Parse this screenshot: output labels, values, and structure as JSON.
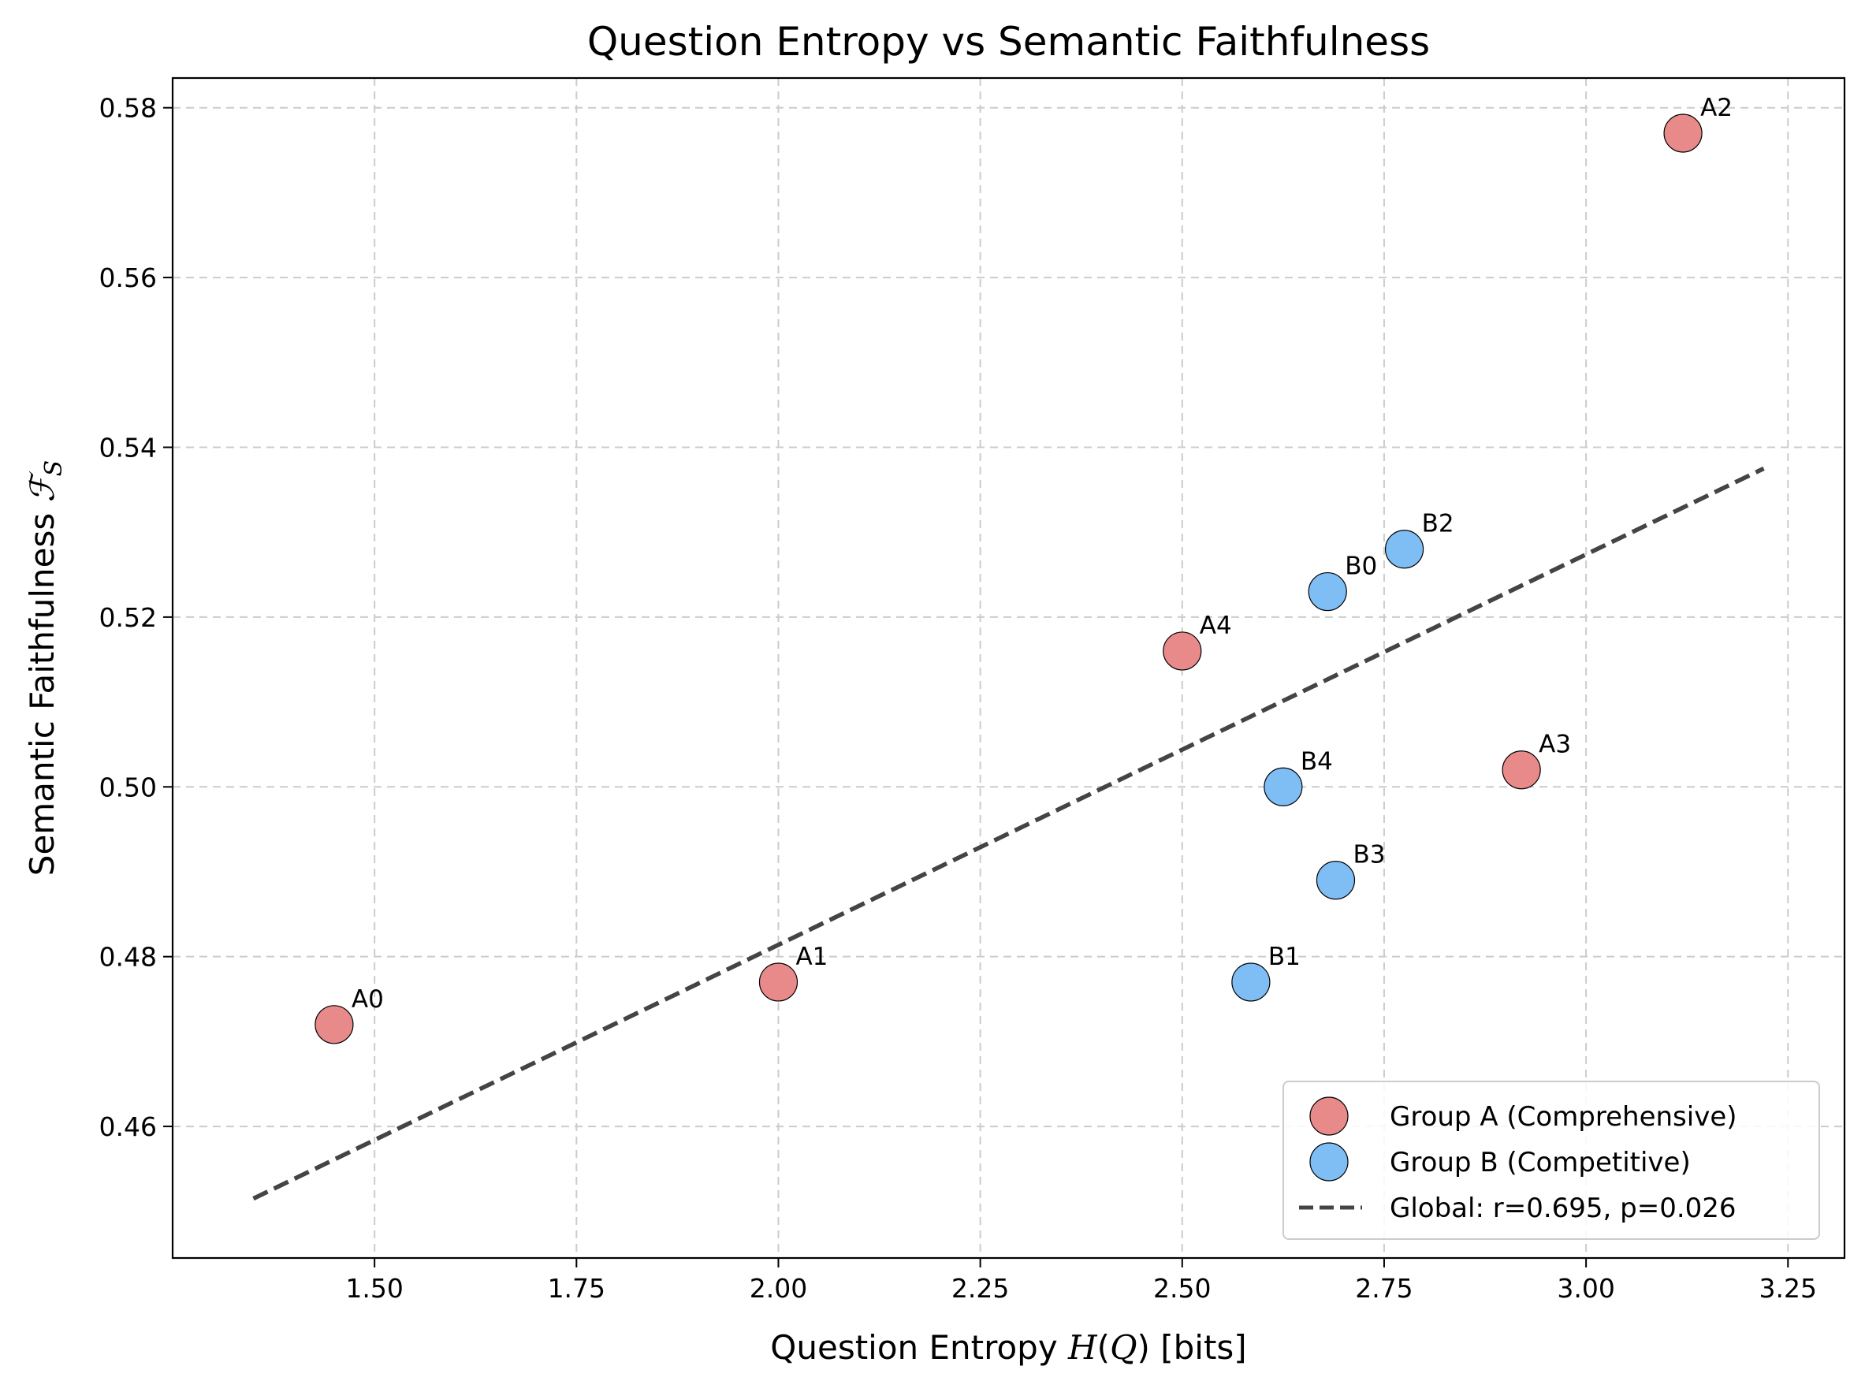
{
  "chart_data": {
    "type": "scatter",
    "title": "Question Entropy vs Semantic Faithfulness",
    "xlabel": {
      "prefix": "Question Entropy ",
      "math": "H",
      "open": "(",
      "math2": "Q",
      "close": ")",
      "suffix": " [bits]"
    },
    "ylabel": {
      "prefix": "Semantic Faithfulness ",
      "math": "ℱ",
      "sub": "S"
    },
    "xlim": [
      1.25,
      3.32
    ],
    "ylim": [
      0.4445,
      0.5835
    ],
    "xticks": [
      1.5,
      1.75,
      2.0,
      2.25,
      2.5,
      2.75,
      3.0,
      3.25
    ],
    "xtick_labels": [
      "1.50",
      "1.75",
      "2.00",
      "2.25",
      "2.50",
      "2.75",
      "3.00",
      "3.25"
    ],
    "yticks": [
      0.46,
      0.48,
      0.5,
      0.52,
      0.54,
      0.56,
      0.58
    ],
    "ytick_labels": [
      "0.46",
      "0.48",
      "0.50",
      "0.52",
      "0.54",
      "0.56",
      "0.58"
    ],
    "grid": true,
    "legend_position": "lower-right",
    "series": [
      {
        "name": "Group A (Comprehensive)",
        "color": "#e88a8a",
        "points": [
          {
            "label": "A0",
            "x": 1.45,
            "y": 0.472
          },
          {
            "label": "A1",
            "x": 2.0,
            "y": 0.477
          },
          {
            "label": "A2",
            "x": 3.12,
            "y": 0.577
          },
          {
            "label": "A3",
            "x": 2.92,
            "y": 0.502
          },
          {
            "label": "A4",
            "x": 2.5,
            "y": 0.516
          }
        ]
      },
      {
        "name": "Group B (Competitive)",
        "color": "#7fbef5",
        "points": [
          {
            "label": "B0",
            "x": 2.68,
            "y": 0.523
          },
          {
            "label": "B1",
            "x": 2.585,
            "y": 0.477
          },
          {
            "label": "B2",
            "x": 2.775,
            "y": 0.528
          },
          {
            "label": "B3",
            "x": 2.69,
            "y": 0.489
          },
          {
            "label": "B4",
            "x": 2.625,
            "y": 0.5
          }
        ]
      }
    ],
    "fit_line": {
      "name": "Global: r=0.695, p=0.026",
      "color": "#444444",
      "x": [
        1.35,
        3.22
      ],
      "y": [
        0.4515,
        0.5375
      ]
    }
  }
}
